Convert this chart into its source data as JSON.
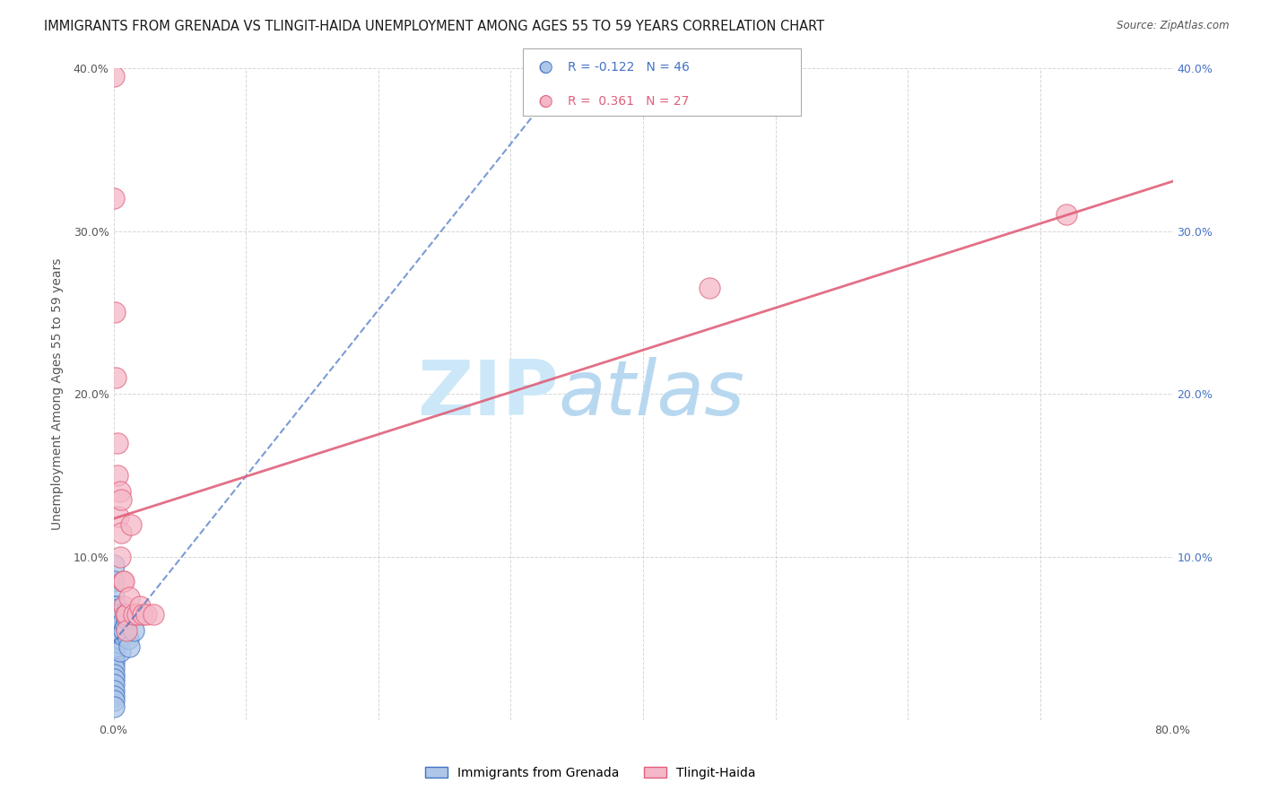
{
  "title": "IMMIGRANTS FROM GRENADA VS TLINGIT-HAIDA UNEMPLOYMENT AMONG AGES 55 TO 59 YEARS CORRELATION CHART",
  "source": "Source: ZipAtlas.com",
  "ylabel": "Unemployment Among Ages 55 to 59 years",
  "xlim": [
    0.0,
    0.8
  ],
  "ylim": [
    0.0,
    0.4
  ],
  "xticks": [
    0.0,
    0.1,
    0.2,
    0.3,
    0.4,
    0.5,
    0.6,
    0.7,
    0.8
  ],
  "xticklabels": [
    "0.0%",
    "",
    "",
    "",
    "",
    "",
    "",
    "",
    "80.0%"
  ],
  "yticks": [
    0.0,
    0.1,
    0.2,
    0.3,
    0.4
  ],
  "yleft_labels": [
    "",
    "10.0%",
    "20.0%",
    "30.0%",
    "40.0%"
  ],
  "yright_labels": [
    "",
    "10.0%",
    "20.0%",
    "30.0%",
    "40.0%"
  ],
  "grenada_color": "#aec6e8",
  "grenada_edge_color": "#4472c4",
  "tlingit_color": "#f4b8c8",
  "tlingit_edge_color": "#e0607a",
  "grenada_R": -0.122,
  "grenada_N": 46,
  "tlingit_R": 0.361,
  "tlingit_N": 27,
  "grenada_trendline_color": "#4472c4",
  "tlingit_trendline_color": "#e0607a",
  "grenada_points_x": [
    0.0,
    0.0,
    0.0,
    0.0,
    0.0,
    0.0,
    0.0,
    0.0,
    0.0,
    0.0,
    0.0,
    0.0,
    0.0,
    0.0,
    0.0,
    0.0,
    0.0,
    0.0,
    0.0,
    0.0,
    0.0,
    0.001,
    0.001,
    0.001,
    0.001,
    0.002,
    0.002,
    0.002,
    0.003,
    0.003,
    0.004,
    0.004,
    0.004,
    0.005,
    0.005,
    0.005,
    0.005,
    0.006,
    0.007,
    0.007,
    0.008,
    0.009,
    0.01,
    0.011,
    0.012,
    0.015
  ],
  "grenada_points_y": [
    0.095,
    0.085,
    0.075,
    0.065,
    0.06,
    0.055,
    0.05,
    0.048,
    0.045,
    0.042,
    0.04,
    0.038,
    0.035,
    0.032,
    0.028,
    0.025,
    0.022,
    0.018,
    0.015,
    0.012,
    0.008,
    0.07,
    0.065,
    0.055,
    0.045,
    0.07,
    0.062,
    0.055,
    0.065,
    0.055,
    0.068,
    0.058,
    0.048,
    0.065,
    0.058,
    0.05,
    0.042,
    0.063,
    0.06,
    0.052,
    0.055,
    0.058,
    0.062,
    0.05,
    0.045,
    0.055
  ],
  "tlingit_points_x": [
    0.0,
    0.0,
    0.001,
    0.002,
    0.003,
    0.003,
    0.004,
    0.005,
    0.005,
    0.006,
    0.006,
    0.007,
    0.008,
    0.008,
    0.009,
    0.01,
    0.01,
    0.012,
    0.013,
    0.015,
    0.018,
    0.02,
    0.022,
    0.025,
    0.03,
    0.45,
    0.72
  ],
  "tlingit_points_y": [
    0.395,
    0.32,
    0.25,
    0.21,
    0.17,
    0.15,
    0.125,
    0.14,
    0.1,
    0.135,
    0.115,
    0.085,
    0.085,
    0.07,
    0.065,
    0.065,
    0.055,
    0.075,
    0.12,
    0.065,
    0.065,
    0.07,
    0.065,
    0.065,
    0.065,
    0.265,
    0.31
  ],
  "watermark_text": "ZIPatlas",
  "watermark_color": "#cce0f0",
  "background_color": "#ffffff",
  "grid_color": "#cccccc",
  "legend_labels": [
    "Immigrants from Grenada",
    "Tlingit-Haida"
  ],
  "title_fontsize": 10.5,
  "axis_label_fontsize": 10,
  "tick_fontsize": 9,
  "right_tick_color": "#4472c4",
  "left_tick_color": "#555555",
  "bottom_tick_color": "#555555"
}
